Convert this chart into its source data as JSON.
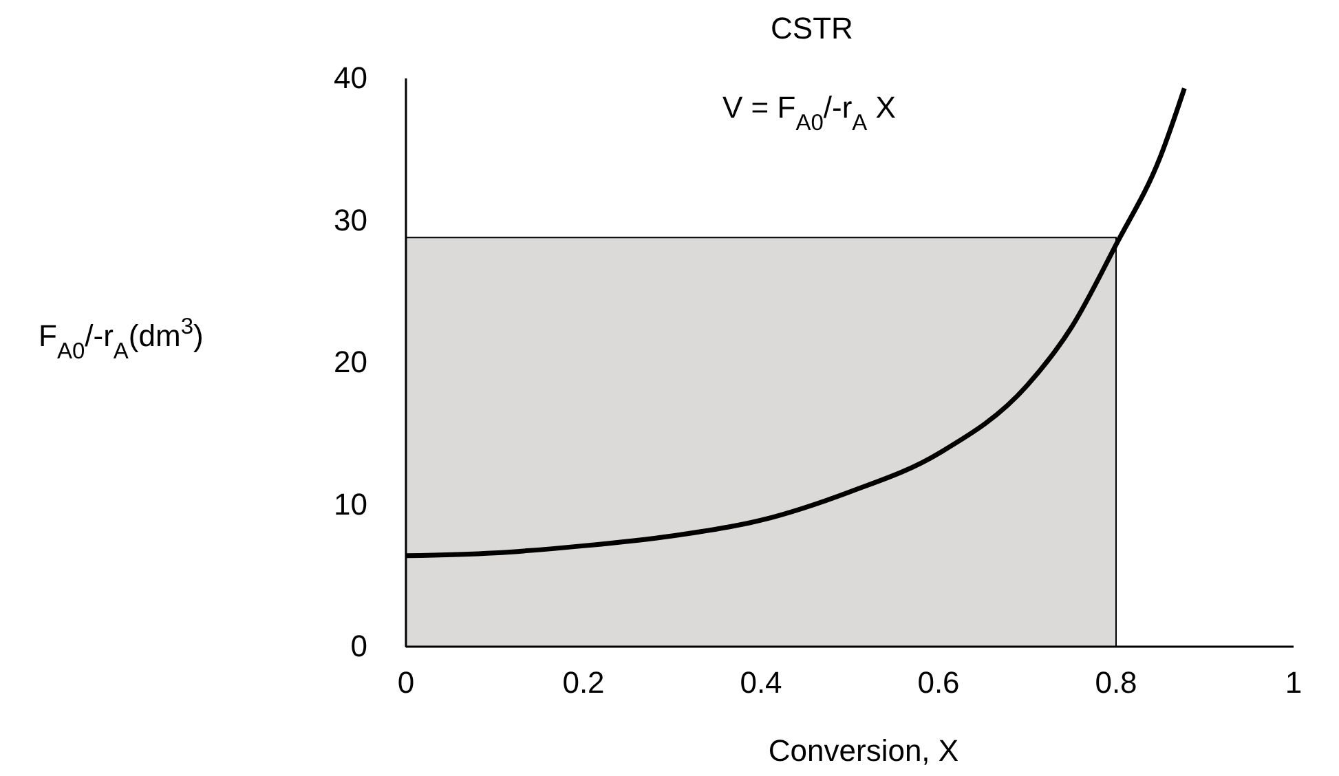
{
  "chart_data": {
    "type": "line",
    "title": "CSTR",
    "xlabel": "Conversion, X",
    "ylabel": "F$_{A0}$/-r$_{A}$(dm$^{3}$)",
    "annotations": [
      "V = F$_{A0}$/-r$_{A}$ X"
    ],
    "series": [
      {
        "type": "area",
        "color": "#dcd9d9",
        "x": [
          0,
          0.8
        ],
        "values": [
          28.8,
          28.8
        ]
      },
      {
        "type": "line",
        "color": "#000000",
        "x": [
          0,
          0.1,
          0.2,
          0.3,
          0.4,
          0.5,
          0.6,
          0.7,
          0.75,
          0.8,
          0.85,
          0.877
        ],
        "values": [
          6.4,
          6.6,
          7.1,
          7.8,
          8.9,
          10.9,
          13.6,
          18.4,
          22.5,
          28.3,
          34.5,
          39.3
        ]
      }
    ],
    "xlim": [
      0,
      1
    ],
    "xticks": [
      0,
      0.2,
      0.4,
      0.6,
      0.8,
      1
    ],
    "ylim": [
      0,
      40
    ],
    "yticks": [
      0,
      10,
      20,
      30,
      40
    ],
    "grid": false,
    "marker": "none",
    "line_style": "solid"
  }
}
